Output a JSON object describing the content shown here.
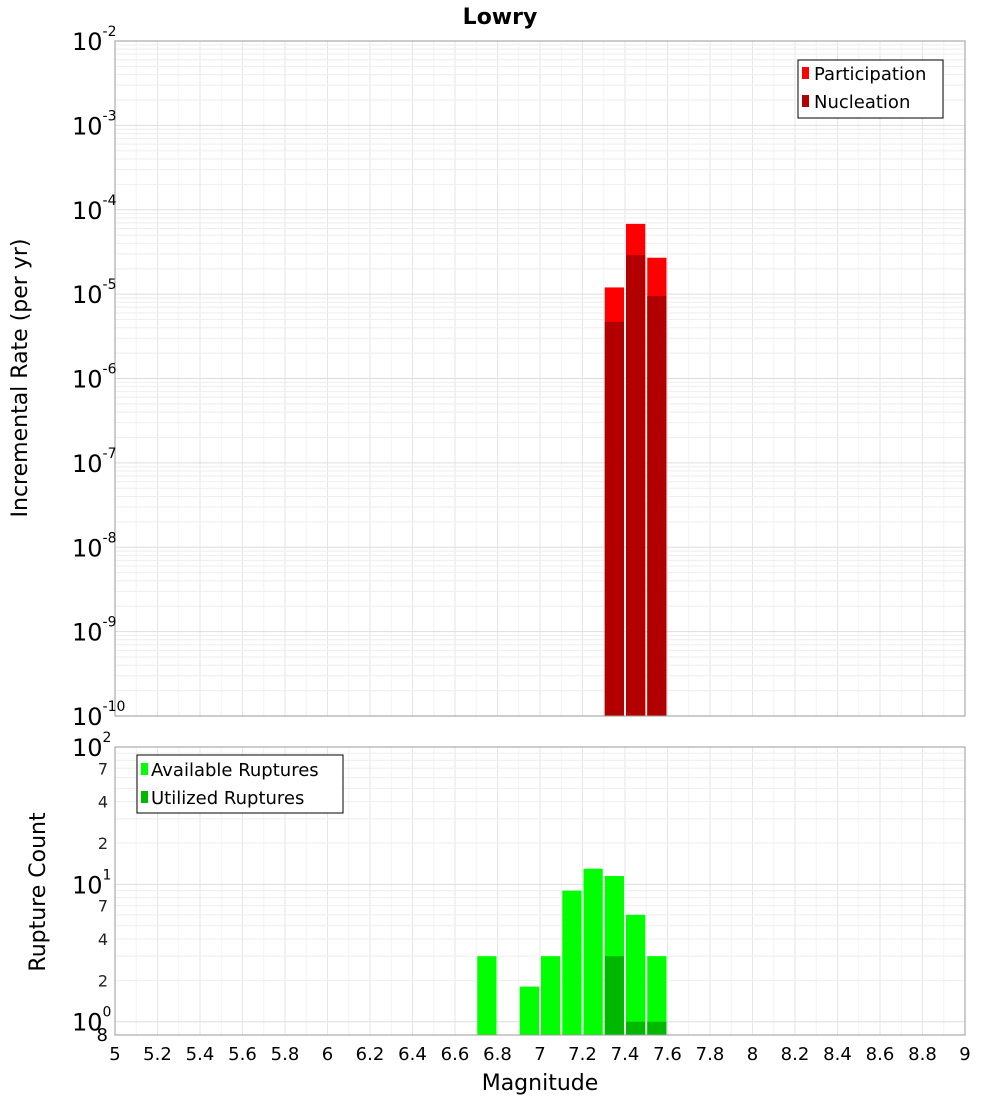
{
  "chart_data": [
    {
      "type": "bar",
      "title": "Lowry",
      "xlabel": "",
      "ylabel": "Incremental Rate (per yr)",
      "yscale": "log",
      "ylim": [
        1e-10,
        0.01
      ],
      "xlim": [
        5,
        9
      ],
      "bar_width": 0.1,
      "legend_position": "top-right",
      "y_ticks": [
        {
          "base": "10",
          "exp": "-2"
        },
        {
          "base": "10",
          "exp": "-3"
        },
        {
          "base": "10",
          "exp": "-4"
        },
        {
          "base": "10",
          "exp": "-5"
        },
        {
          "base": "10",
          "exp": "-6"
        },
        {
          "base": "10",
          "exp": "-7"
        },
        {
          "base": "10",
          "exp": "-8"
        },
        {
          "base": "10",
          "exp": "-9"
        },
        {
          "base": "10",
          "exp": "-10"
        }
      ],
      "series": [
        {
          "name": "Participation",
          "color": "#ff0000",
          "x": [
            7.35,
            7.45,
            7.55
          ],
          "values": [
            1.2e-05,
            6.8e-05,
            2.7e-05
          ]
        },
        {
          "name": "Nucleation",
          "color": "#b20000",
          "x": [
            7.35,
            7.45,
            7.55
          ],
          "values": [
            4.7e-06,
            2.9e-05,
            9.5e-06
          ]
        }
      ]
    },
    {
      "type": "bar",
      "xlabel": "Magnitude",
      "ylabel": "Rupture Count",
      "yscale": "log",
      "ylim": [
        0.8,
        100
      ],
      "xlim": [
        5,
        9
      ],
      "bar_width": 0.1,
      "legend_position": "top-left",
      "x_ticks": [
        "5",
        "5.2",
        "5.4",
        "5.6",
        "5.8",
        "6",
        "6.2",
        "6.4",
        "6.6",
        "6.8",
        "7",
        "7.2",
        "7.4",
        "7.6",
        "7.8",
        "8",
        "8.2",
        "8.4",
        "8.6",
        "8.8",
        "9"
      ],
      "y_major_ticks": [
        {
          "value": 100,
          "base": "10",
          "exp": "2"
        },
        {
          "value": 10,
          "base": "10",
          "exp": "1"
        },
        {
          "value": 1,
          "base": "10",
          "exp": "0"
        }
      ],
      "y_minor_ticks": [
        {
          "value": 70,
          "label": "7"
        },
        {
          "value": 40,
          "label": "4"
        },
        {
          "value": 20,
          "label": "2"
        },
        {
          "value": 7,
          "label": "7"
        },
        {
          "value": 4,
          "label": "4"
        },
        {
          "value": 2,
          "label": "2"
        },
        {
          "value": 0.8,
          "label": "8"
        }
      ],
      "series": [
        {
          "name": "Available Ruptures",
          "color": "#00ff00",
          "x": [
            6.75,
            6.95,
            7.05,
            7.15,
            7.25,
            7.35,
            7.45,
            7.55
          ],
          "values": [
            3,
            1.8,
            3,
            9,
            13,
            11.5,
            6,
            3
          ]
        },
        {
          "name": "Utilized Ruptures",
          "color": "#00b800",
          "x": [
            7.35,
            7.45,
            7.55
          ],
          "values": [
            3,
            1,
            1
          ]
        }
      ]
    }
  ]
}
